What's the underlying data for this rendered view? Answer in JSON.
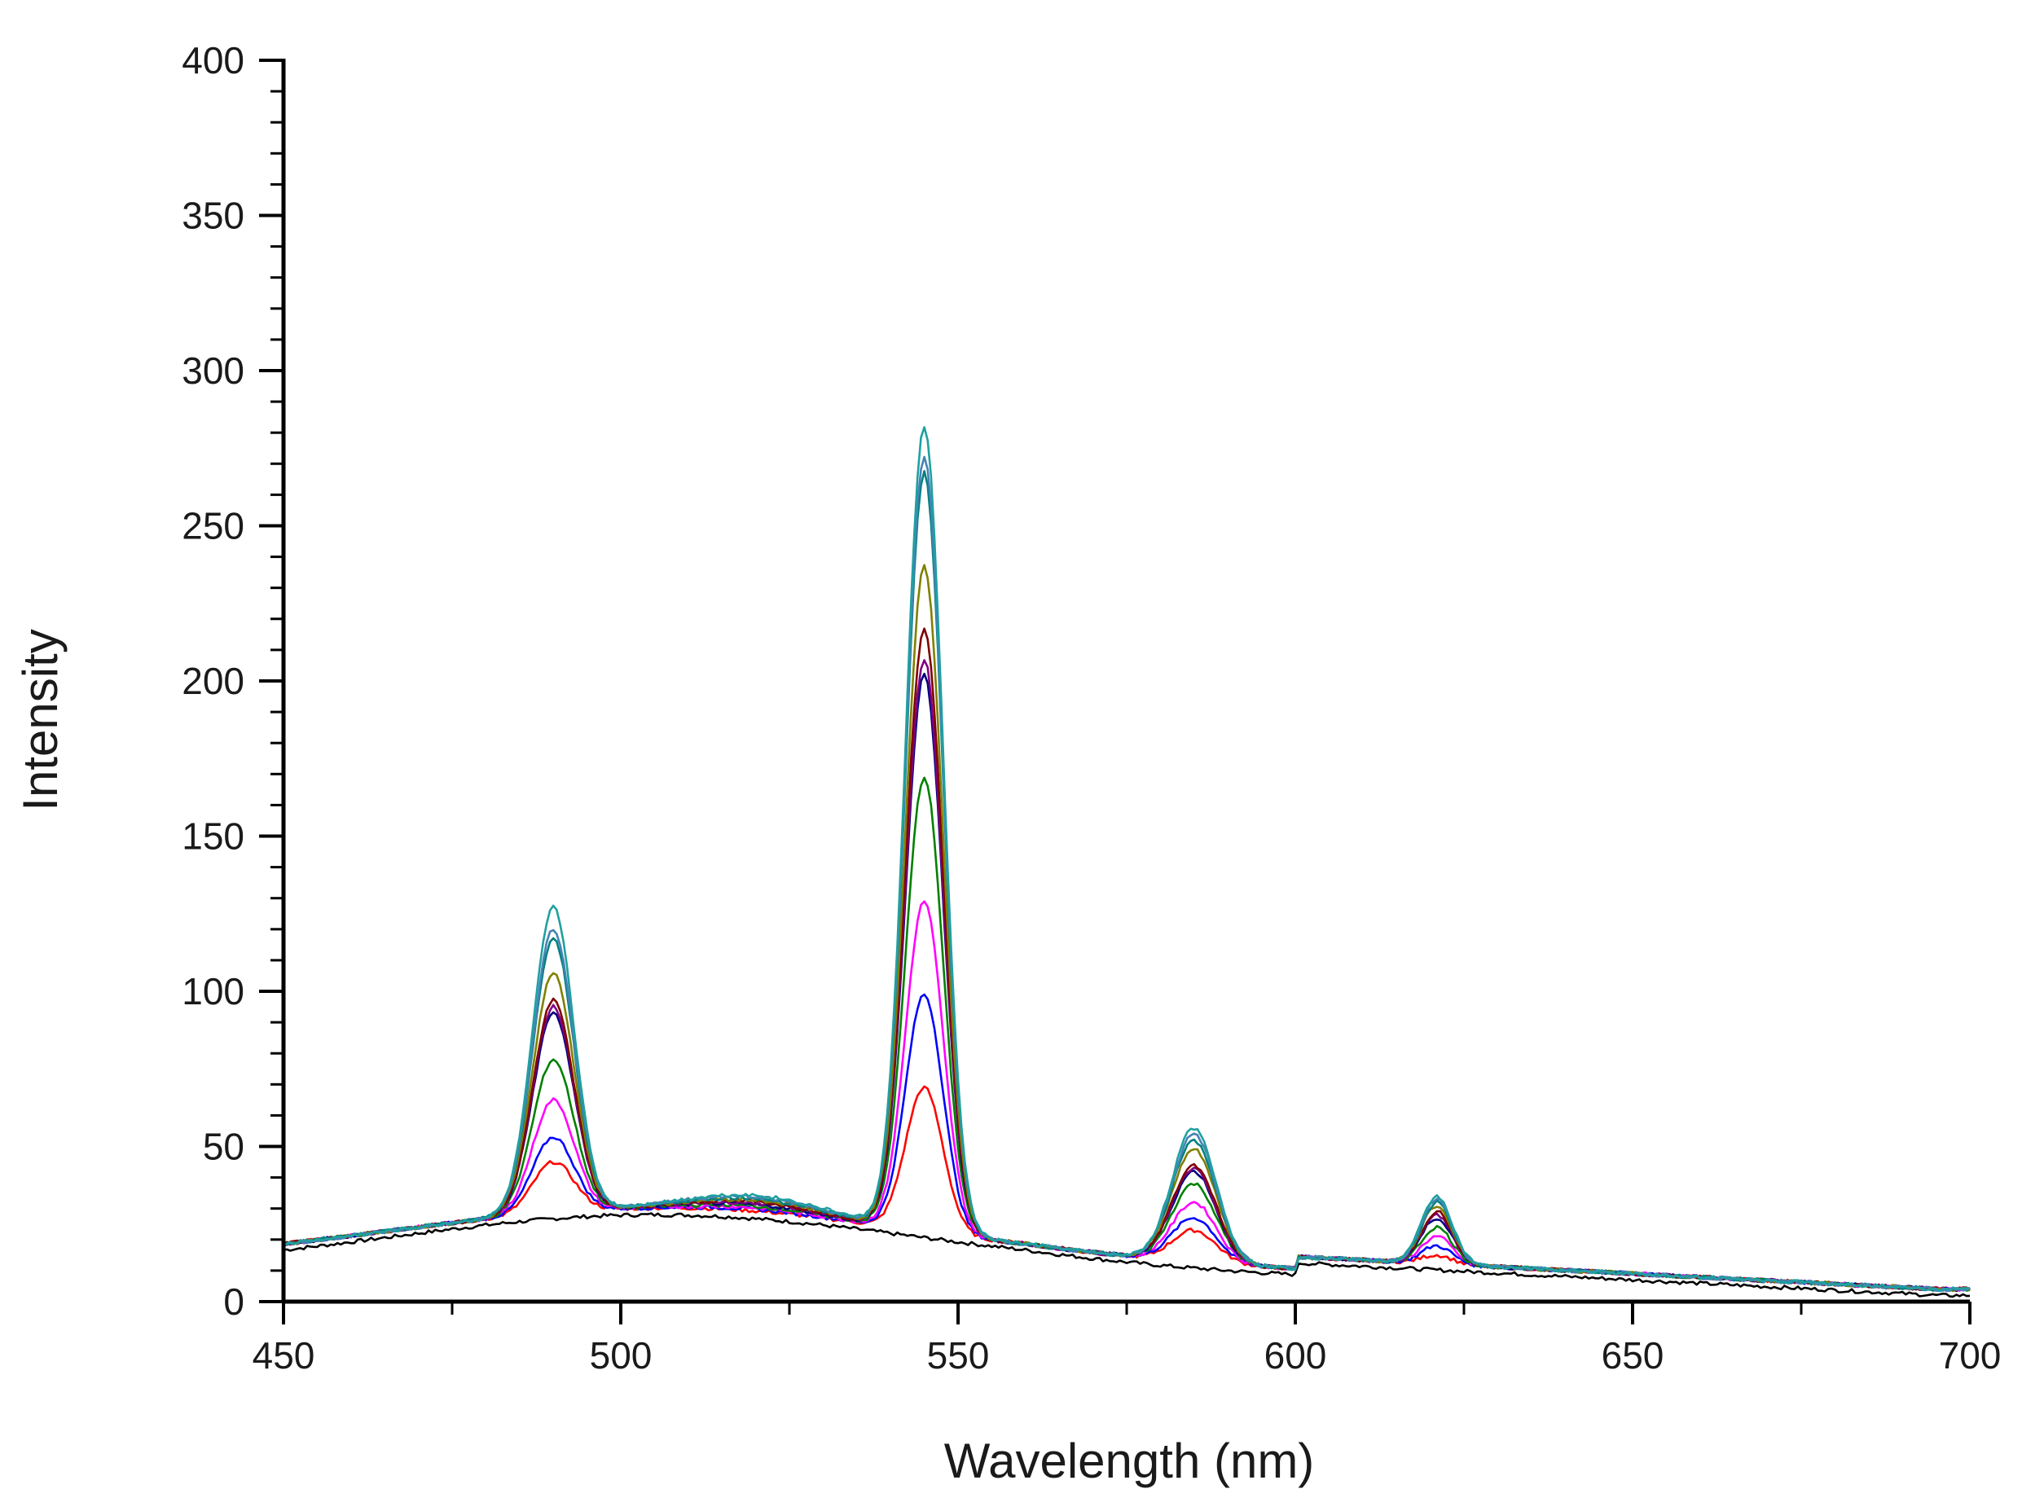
{
  "chart_data": {
    "type": "line",
    "title": "",
    "xlabel": "Wavelength (nm)",
    "ylabel": "Intensity",
    "xlim": [
      450,
      700
    ],
    "ylim": [
      0,
      400
    ],
    "xticks": [
      450,
      500,
      550,
      600,
      650,
      700
    ],
    "yticks": [
      0,
      50,
      100,
      150,
      200,
      250,
      300,
      350,
      400
    ],
    "grid": false,
    "legend": "none",
    "series": [
      {
        "color": "#000000",
        "peaks": [
          0,
          0,
          0,
          0
        ],
        "baseline": "flat"
      },
      {
        "color": "#ff0000",
        "peaks": [
          43,
          67,
          21,
          13
        ]
      },
      {
        "color": "#0000ff",
        "peaks": [
          51,
          97,
          25,
          16
        ]
      },
      {
        "color": "#ff00ff",
        "peaks": [
          63,
          127,
          30,
          19
        ]
      },
      {
        "color": "#008000",
        "peaks": [
          76,
          167,
          36,
          22
        ]
      },
      {
        "color": "#000080",
        "peaks": [
          91,
          200,
          40,
          25
        ]
      },
      {
        "color": "#800080",
        "peaks": [
          93,
          205,
          41,
          26
        ]
      },
      {
        "color": "#800000",
        "peaks": [
          95,
          215,
          42,
          27
        ]
      },
      {
        "color": "#808000",
        "peaks": [
          104,
          235,
          47,
          29
        ]
      },
      {
        "color": "#008080",
        "peaks": [
          115,
          265,
          50,
          30
        ]
      },
      {
        "color": "#4682b4",
        "peaks": [
          118,
          270,
          52,
          31
        ]
      },
      {
        "color": "#20a0a0",
        "peaks": [
          125,
          280,
          54,
          32
        ]
      }
    ],
    "peak_positions": [
      490,
      545,
      585,
      621
    ]
  }
}
